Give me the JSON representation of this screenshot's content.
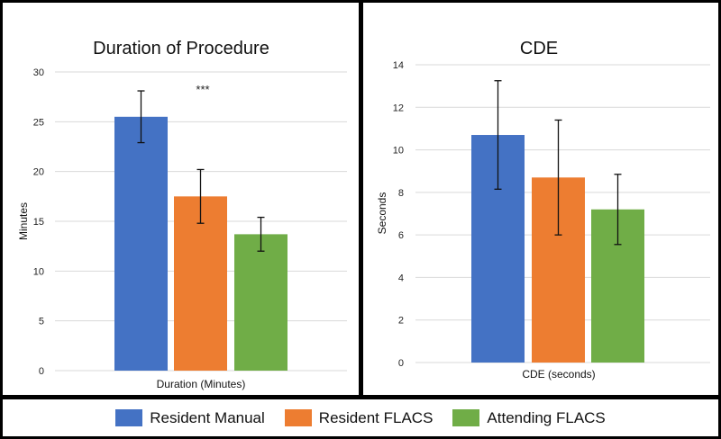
{
  "chart_data": [
    {
      "type": "bar",
      "title": "Duration of Procedure",
      "xlabel": "Duration (Minutes)",
      "ylabel": "Minutes",
      "ylim": [
        0,
        30
      ],
      "yticks": [
        0,
        5,
        10,
        15,
        20,
        25,
        30
      ],
      "grid": true,
      "annotation": "***",
      "series": [
        {
          "name": "Resident Manual",
          "values": [
            25.5
          ],
          "error": [
            2.6
          ]
        },
        {
          "name": "Resident FLACS",
          "values": [
            17.5
          ],
          "error": [
            2.7
          ]
        },
        {
          "name": "Attending FLACS",
          "values": [
            13.7
          ],
          "error": [
            1.7
          ]
        }
      ]
    },
    {
      "type": "bar",
      "title": "CDE",
      "xlabel": "CDE (seconds)",
      "ylabel": "Seconds",
      "ylim": [
        0,
        14
      ],
      "yticks": [
        0,
        2,
        4,
        6,
        8,
        10,
        12,
        14
      ],
      "grid": true,
      "series": [
        {
          "name": "Resident Manual",
          "values": [
            10.7
          ],
          "error": [
            2.55
          ]
        },
        {
          "name": "Resident FLACS",
          "values": [
            8.7
          ],
          "error": [
            2.7
          ]
        },
        {
          "name": "Attending FLACS",
          "values": [
            7.2
          ],
          "error": [
            1.65
          ]
        }
      ]
    }
  ],
  "legend": [
    {
      "label": "Resident Manual",
      "color": "#4472C4"
    },
    {
      "label": "Resident FLACS",
      "color": "#ED7D31"
    },
    {
      "label": "Attending FLACS",
      "color": "#70AD47"
    }
  ]
}
